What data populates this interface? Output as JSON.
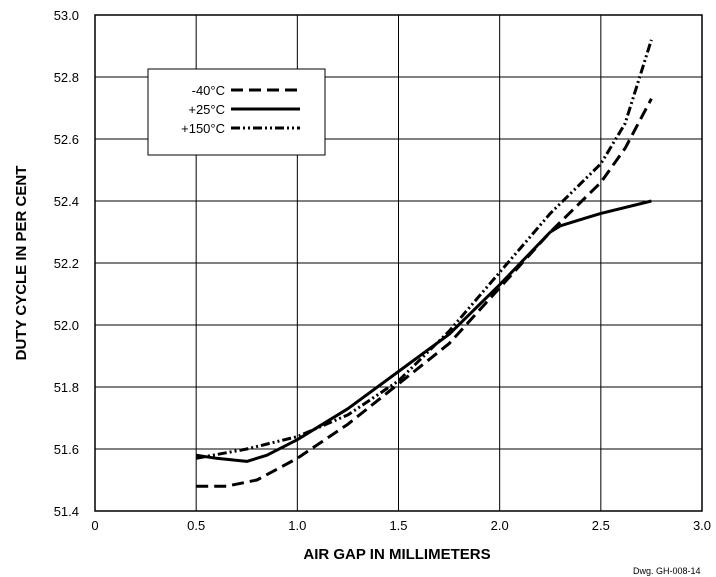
{
  "chart_data": {
    "type": "line",
    "title": "",
    "xlabel": "AIR GAP IN MILLIMETERS",
    "ylabel": "DUTY CYCLE IN PER CENT",
    "xlim": [
      0,
      3.0
    ],
    "ylim": [
      51.4,
      53.0
    ],
    "x_ticks": [
      0,
      0.5,
      1.0,
      1.5,
      2.0,
      2.5,
      3.0
    ],
    "x_tick_labels": [
      "0",
      "0.5",
      "1.0",
      "1.5",
      "2.0",
      "2.5",
      "3.0"
    ],
    "y_ticks": [
      51.4,
      51.6,
      51.8,
      52.0,
      52.2,
      52.4,
      52.6,
      52.8,
      53.0
    ],
    "y_tick_labels": [
      "51.4",
      "51.6",
      "51.8",
      "52.0",
      "52.2",
      "52.4",
      "52.6",
      "52.8",
      "53.0"
    ],
    "grid": true,
    "legend_position": "top-left",
    "series": [
      {
        "name": "-40°C",
        "style": "dashed",
        "x": [
          0.5,
          0.65,
          0.8,
          1.0,
          1.25,
          1.5,
          1.75,
          2.0,
          2.25,
          2.5,
          2.62,
          2.75
        ],
        "y": [
          51.48,
          51.48,
          51.5,
          51.57,
          51.68,
          51.81,
          51.94,
          52.12,
          52.3,
          52.46,
          52.57,
          52.73
        ]
      },
      {
        "name": "+25°C",
        "style": "solid",
        "x": [
          0.5,
          0.6,
          0.75,
          0.85,
          1.0,
          1.25,
          1.5,
          1.75,
          2.0,
          2.25,
          2.3,
          2.4,
          2.5,
          2.75
        ],
        "y": [
          51.58,
          51.57,
          51.56,
          51.58,
          51.63,
          51.73,
          51.85,
          51.97,
          52.13,
          52.3,
          52.32,
          52.34,
          52.36,
          52.4
        ]
      },
      {
        "name": "+150°C",
        "style": "dash-dot-dot",
        "x": [
          0.5,
          0.75,
          1.0,
          1.25,
          1.5,
          1.75,
          2.0,
          2.25,
          2.5,
          2.62,
          2.75
        ],
        "y": [
          51.57,
          51.6,
          51.64,
          51.71,
          51.82,
          51.98,
          52.17,
          52.36,
          52.52,
          52.65,
          52.92
        ]
      }
    ],
    "annotation": "Dwg. GH-008-14"
  }
}
